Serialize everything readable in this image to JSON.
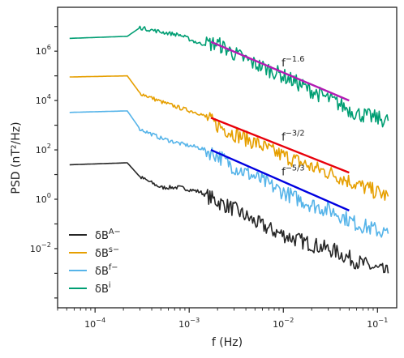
{
  "chart_data": {
    "type": "line",
    "title": "",
    "xlabel": "f (Hz)",
    "ylabel": "PSD (nT²/Hz)",
    "xscale": "log",
    "yscale": "log",
    "xlim": [
      4e-05,
      0.16
    ],
    "ylim": [
      4e-05,
      60000000
    ],
    "x_ticks": [
      {
        "value": 0.0001,
        "base": "10",
        "exp": "−4"
      },
      {
        "value": 0.001,
        "base": "10",
        "exp": "−3"
      },
      {
        "value": 0.01,
        "base": "10",
        "exp": "−2"
      },
      {
        "value": 0.1,
        "base": "10",
        "exp": "−1"
      }
    ],
    "y_ticks": [
      {
        "value": 0.01,
        "base": "10",
        "exp": "−2"
      },
      {
        "value": 1,
        "base": "10",
        "exp": "0"
      },
      {
        "value": 100,
        "base": "10",
        "exp": "2"
      },
      {
        "value": 10000,
        "base": "10",
        "exp": "4"
      },
      {
        "value": 1000000,
        "base": "10",
        "exp": "6"
      }
    ],
    "grid": false,
    "legend_position": "bottom-left",
    "series": [
      {
        "key": "A",
        "label_base": "δB",
        "label_sup": "A−",
        "color": "#262626",
        "x": [
          5.37e-05,
          0.00022,
          0.0003,
          0.0005,
          0.0008,
          0.0013,
          0.002,
          0.003,
          0.005,
          0.008,
          0.013,
          0.02,
          0.035,
          0.06,
          0.13
        ],
        "y": [
          25,
          30,
          8,
          3,
          3,
          2,
          0.8,
          0.4,
          0.12,
          0.05,
          0.025,
          0.015,
          0.008,
          0.003,
          0.001
        ]
      },
      {
        "key": "s",
        "label_base": "δB",
        "label_sup": "s−",
        "color": "#e69f00",
        "x": [
          5.37e-05,
          0.00022,
          0.0003,
          0.0005,
          0.0008,
          0.0013,
          0.002,
          0.003,
          0.005,
          0.008,
          0.013,
          0.02,
          0.035,
          0.06,
          0.13
        ],
        "y": [
          90000,
          100000,
          20000,
          9000,
          5000,
          3000,
          1000,
          450,
          200,
          80,
          40,
          20,
          10,
          4,
          1.3
        ]
      },
      {
        "key": "f",
        "label_base": "δB",
        "label_sup": "f−",
        "color": "#56b4e9",
        "x": [
          5.37e-05,
          0.00022,
          0.0003,
          0.0005,
          0.0008,
          0.0013,
          0.002,
          0.003,
          0.005,
          0.008,
          0.013,
          0.02,
          0.035,
          0.06,
          0.13
        ],
        "y": [
          3300,
          3800,
          700,
          300,
          180,
          120,
          60,
          20,
          8,
          3,
          1.2,
          0.6,
          0.3,
          0.1,
          0.04
        ]
      },
      {
        "key": "i",
        "label_base": "δB",
        "label_sup": "i",
        "color": "#009e73",
        "x": [
          5.37e-05,
          0.00022,
          0.0003,
          0.0005,
          0.0008,
          0.0013,
          0.002,
          0.003,
          0.005,
          0.008,
          0.013,
          0.02,
          0.035,
          0.06,
          0.13
        ],
        "y": [
          3300000,
          4000000,
          9000000,
          6000000,
          4500000,
          2000000,
          2000000,
          800000,
          300000,
          150000,
          60000,
          25000,
          9000,
          3000,
          1500
        ]
      }
    ],
    "fits": [
      {
        "label_base": "f",
        "label_exp": "−1.6",
        "color": "#b31bb3",
        "x": [
          0.0017,
          0.05
        ],
        "y": [
          2400000,
          10000
        ]
      },
      {
        "label_base": "f",
        "label_exp": "−3/2",
        "color": "#e8000b",
        "x": [
          0.0017,
          0.05
        ],
        "y": [
          2000,
          12
        ]
      },
      {
        "label_base": "f",
        "label_exp": "−5/3",
        "color": "#0000e0",
        "x": [
          0.0017,
          0.05
        ],
        "y": [
          100,
          0.35
        ]
      }
    ]
  }
}
